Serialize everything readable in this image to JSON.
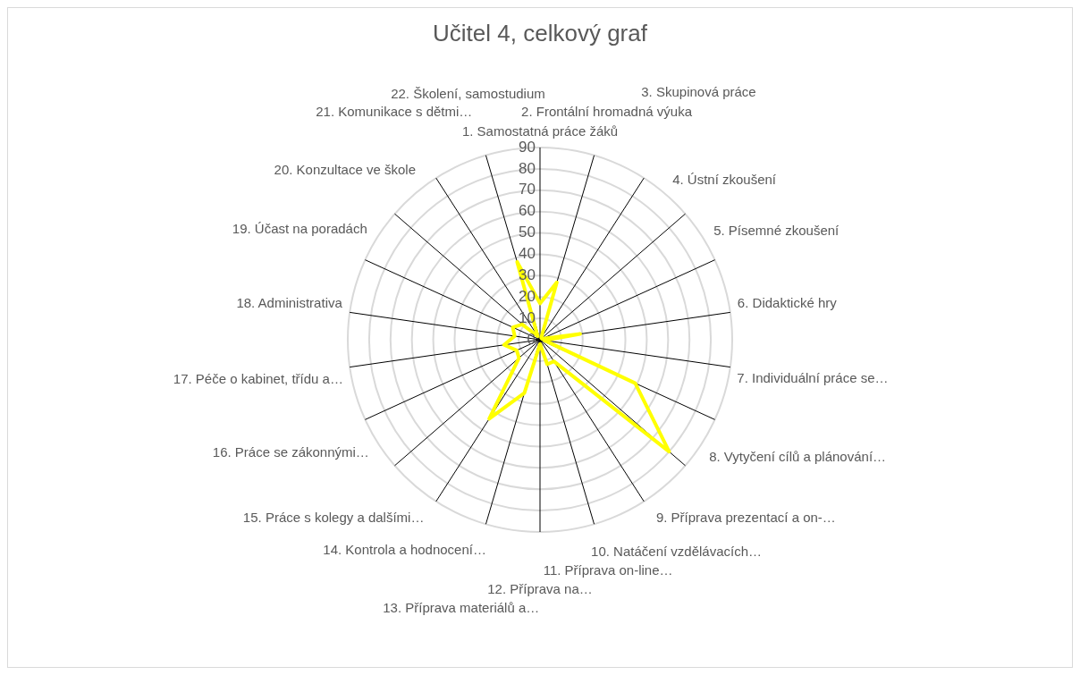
{
  "chart_data": {
    "type": "radar",
    "title": "Učitel 4, celkový graf",
    "categories": [
      "1. Samostatná práce žáků",
      "2. Frontální hromadná výuka",
      "3. Skupinová práce",
      "4. Ústní zkoušení",
      "5. Písemné zkoušení",
      "6. Didaktické hry",
      "7. Individuální práce se…",
      "8. Vytyčení cílů a plánování…",
      "9. Příprava prezentací a on-…",
      "10. Natáčení vzdělávacích…",
      "11. Příprava on-line…",
      "12. Příprava na…",
      "13. Příprava materiálů a…",
      "14. Kontrola a hodnocení…",
      "15. Práce s kolegy a dalšími…",
      "16. Práce se zákonnými…",
      "17. Péče o kabinet, třídu a…",
      "18. Administrativa",
      "19. Účast na poradách",
      "20. Konzultace ve škole",
      "21. Komunikace s dětmi…",
      "22. Školení, samostudium"
    ],
    "series": [
      {
        "color": "#ffff00",
        "values": [
          17,
          28,
          1,
          1,
          1,
          19,
          2,
          49,
          80,
          12,
          12,
          2,
          26,
          44,
          13,
          12,
          17,
          12,
          14,
          11,
          2,
          38
        ]
      }
    ],
    "ylim": [
      0,
      90
    ],
    "yticks": [
      0,
      10,
      20,
      30,
      40,
      50,
      60,
      70,
      80,
      90
    ],
    "grid": true,
    "legend": false,
    "marker": "none"
  }
}
